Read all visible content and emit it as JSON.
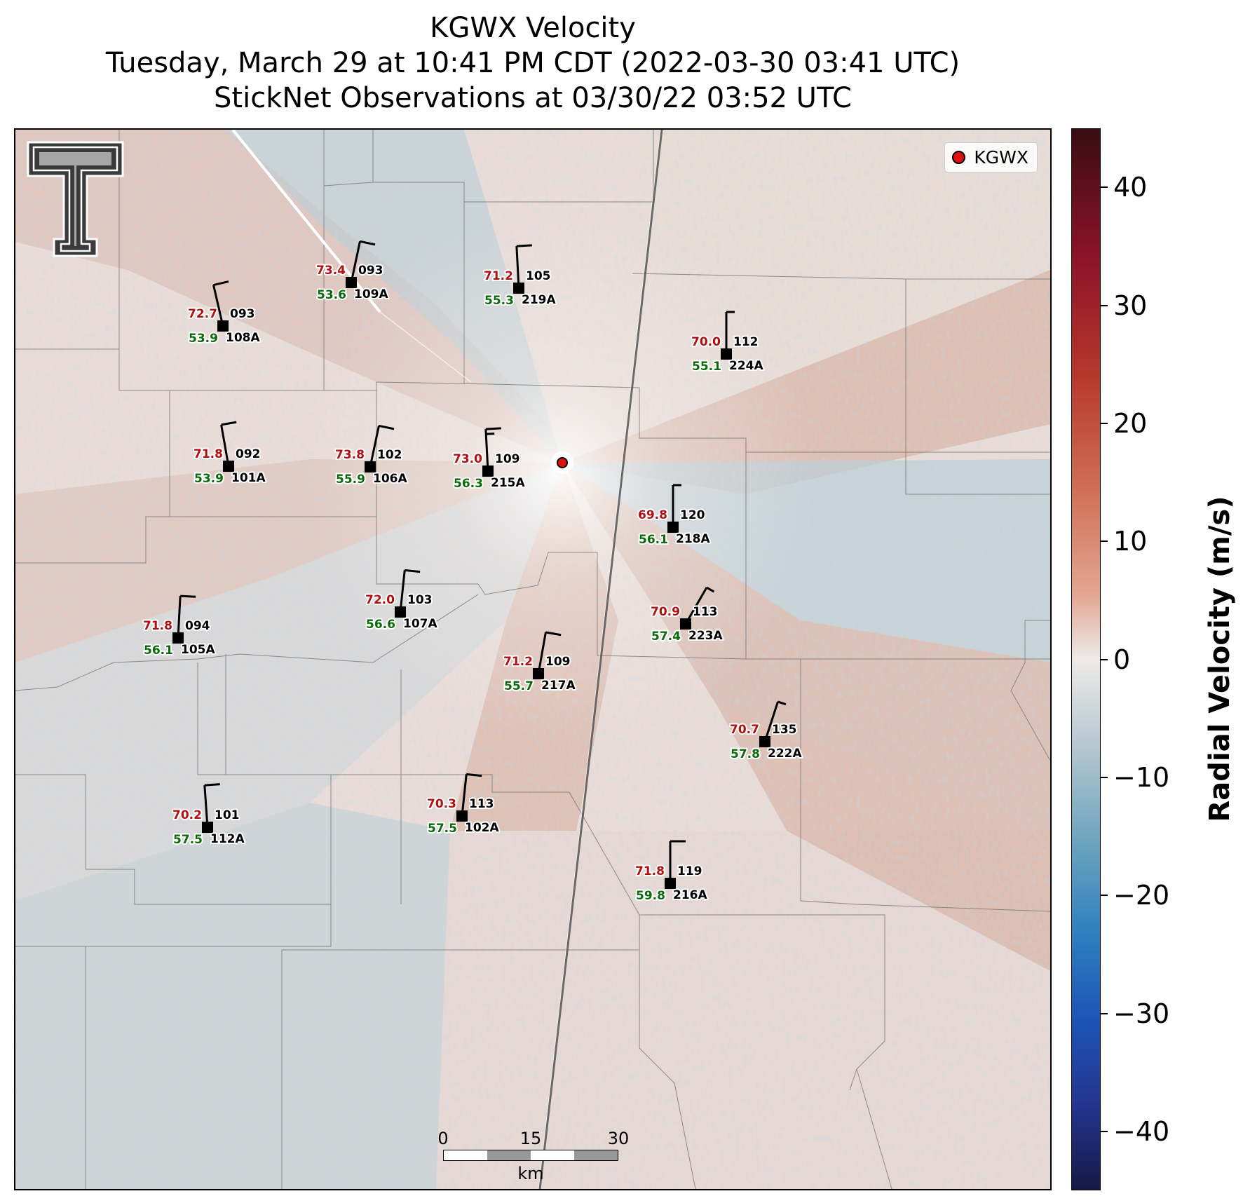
{
  "title": {
    "line1": "KGWX Velocity",
    "line2": "Tuesday, March 29 at 10:41 PM CDT (2022-03-30 03:41 UTC)",
    "line3": "StickNet Observations at 03/30/22 03:52 UTC"
  },
  "legend": {
    "label": "KGWX"
  },
  "radar": {
    "name": "KGWX",
    "marker_color": "#e01010"
  },
  "scalebar": {
    "ticks": [
      "0",
      "15",
      "30"
    ],
    "unit": "km"
  },
  "colorbar": {
    "title": "Radial Velocity (m/s)",
    "min": -45,
    "max": 45,
    "ticks": [
      40,
      30,
      20,
      10,
      0,
      -10,
      -20,
      -30,
      -40
    ],
    "tick_labels": [
      "40",
      "30",
      "20",
      "10",
      "0",
      "−10",
      "−20",
      "−30",
      "−40"
    ]
  },
  "colors": {
    "temperature": "#b01010",
    "dewpoint": "#0a6a0a",
    "barb": "#000000"
  },
  "stations": [
    {
      "id": "108A",
      "temp": "72.7",
      "dew": "53.9",
      "pres": "093",
      "wind_dir": 193,
      "wind_kt": 10
    },
    {
      "id": "109A",
      "temp": "73.4",
      "dew": "53.6",
      "pres": "093",
      "wind_dir": 168,
      "wind_kt": 10
    },
    {
      "id": "219A",
      "temp": "71.2",
      "dew": "55.3",
      "pres": "105",
      "wind_dir": 183,
      "wind_kt": 10
    },
    {
      "id": "224A",
      "temp": "70.0",
      "dew": "55.1",
      "pres": "112",
      "wind_dir": 180,
      "wind_kt": 5
    },
    {
      "id": "101A",
      "temp": "71.8",
      "dew": "53.9",
      "pres": "092",
      "wind_dir": 190,
      "wind_kt": 10
    },
    {
      "id": "106A",
      "temp": "73.8",
      "dew": "55.9",
      "pres": "102",
      "wind_dir": 168,
      "wind_kt": 10
    },
    {
      "id": "215A",
      "temp": "73.0",
      "dew": "56.3",
      "pres": "109",
      "wind_dir": 183,
      "wind_kt": 15
    },
    {
      "id": "218A",
      "temp": "69.8",
      "dew": "56.1",
      "pres": "120",
      "wind_dir": 180,
      "wind_kt": 5
    },
    {
      "id": "105A",
      "temp": "71.8",
      "dew": "56.1",
      "pres": "094",
      "wind_dir": 177,
      "wind_kt": 10
    },
    {
      "id": "107A",
      "temp": "72.0",
      "dew": "56.6",
      "pres": "103",
      "wind_dir": 174,
      "wind_kt": 10
    },
    {
      "id": "223A",
      "temp": "70.9",
      "dew": "57.4",
      "pres": "113",
      "wind_dir": 150,
      "wind_kt": 5
    },
    {
      "id": "217A",
      "temp": "71.2",
      "dew": "55.7",
      "pres": "109",
      "wind_dir": 170,
      "wind_kt": 10
    },
    {
      "id": "222A",
      "temp": "70.7",
      "dew": "57.8",
      "pres": "135",
      "wind_dir": 162,
      "wind_kt": 5
    },
    {
      "id": "112A",
      "temp": "70.2",
      "dew": "57.5",
      "pres": "101",
      "wind_dir": 184,
      "wind_kt": 10
    },
    {
      "id": "102A",
      "temp": "70.3",
      "dew": "57.5",
      "pres": "113",
      "wind_dir": 174,
      "wind_kt": 10
    },
    {
      "id": "216A",
      "temp": "71.8",
      "dew": "59.8",
      "pres": "119",
      "wind_dir": 180,
      "wind_kt": 10
    }
  ]
}
